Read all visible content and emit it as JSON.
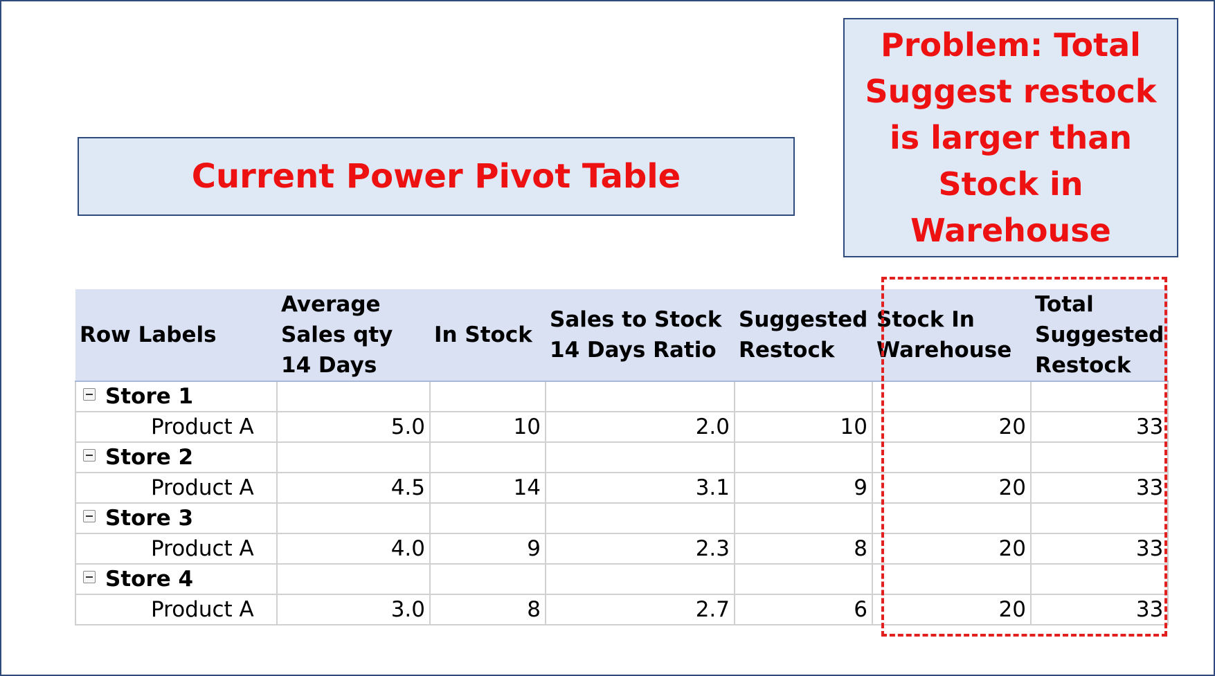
{
  "slide": {
    "title_callout": "Current Power Pivot Table",
    "problem_callout": "Problem: Total Suggest restock is larger than Stock in Warehouse"
  },
  "pivot": {
    "headers": [
      "Row Labels",
      "Average Sales qty 14 Days",
      "In Stock",
      "Sales to Stock 14 Days Ratio",
      "Suggested Restock",
      "Stock In Warehouse",
      "Total Suggested Restock"
    ],
    "groups": [
      {
        "store": "Store 1",
        "product": "Product A",
        "values": [
          "5.0",
          "10",
          "2.0",
          "10",
          "20",
          "33"
        ]
      },
      {
        "store": "Store 2",
        "product": "Product A",
        "values": [
          "4.5",
          "14",
          "3.1",
          "9",
          "20",
          "33"
        ]
      },
      {
        "store": "Store 3",
        "product": "Product A",
        "values": [
          "4.0",
          "9",
          "2.3",
          "8",
          "20",
          "33"
        ]
      },
      {
        "store": "Store 4",
        "product": "Product A",
        "values": [
          "3.0",
          "8",
          "2.7",
          "6",
          "20",
          "33"
        ]
      }
    ]
  },
  "colors": {
    "callout_text": "#ee1111",
    "callout_fill": "#dfe9f5",
    "header_fill": "#dae1f3",
    "highlight_border": "#e32020"
  },
  "icons": {
    "group_toggle": "collapse-minus-icon"
  }
}
